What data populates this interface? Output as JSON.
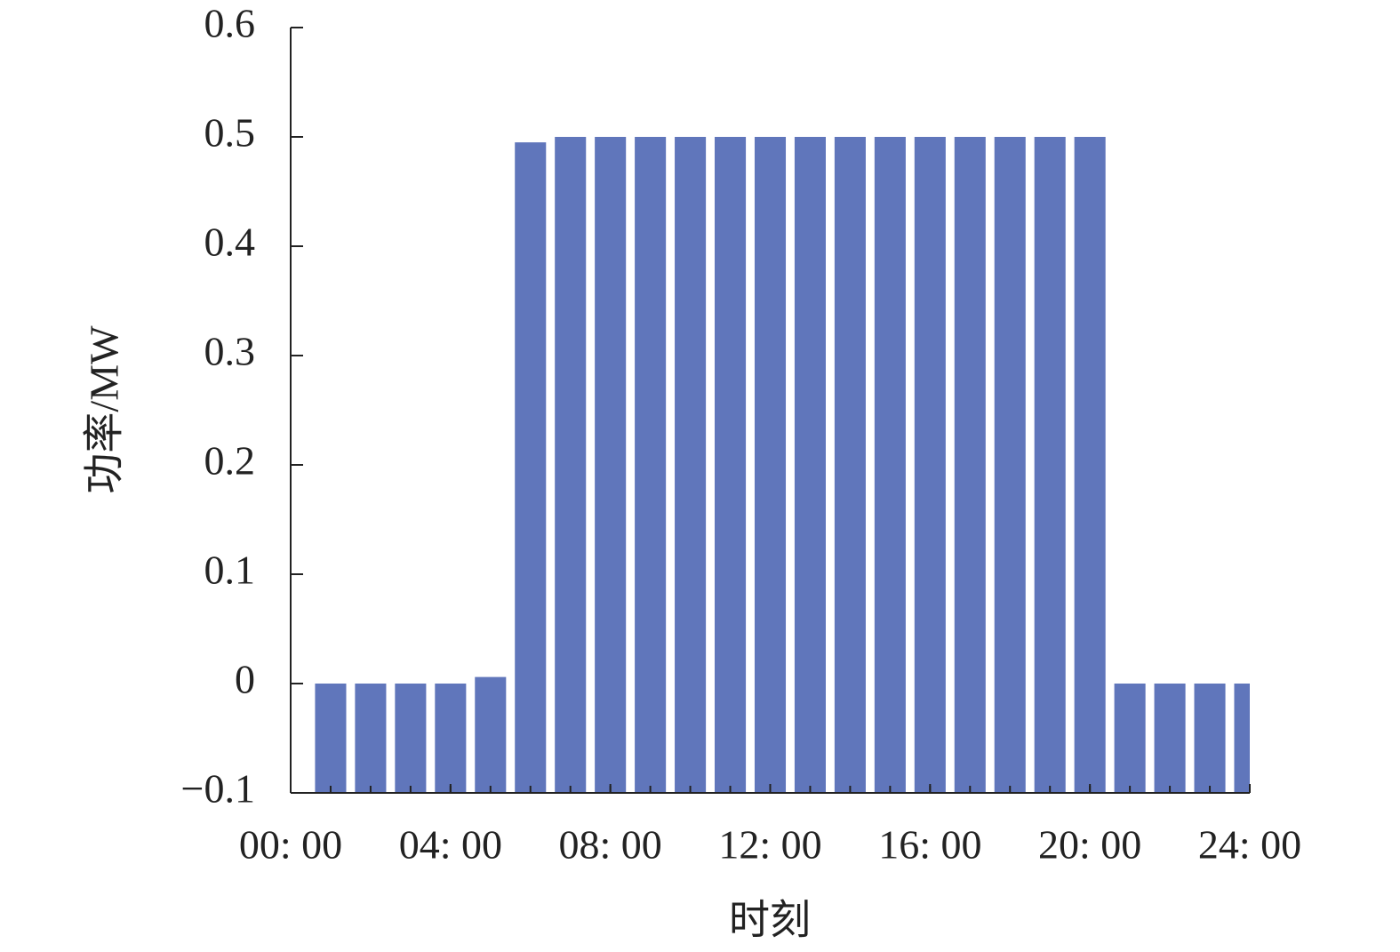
{
  "chart_data": {
    "type": "bar",
    "x": [
      1,
      2,
      3,
      4,
      5,
      6,
      7,
      8,
      9,
      10,
      11,
      12,
      13,
      14,
      15,
      16,
      17,
      18,
      19,
      20,
      21,
      22,
      23,
      24
    ],
    "values": [
      0,
      0,
      0,
      0,
      0.006,
      0.495,
      0.5,
      0.5,
      0.5,
      0.5,
      0.5,
      0.5,
      0.5,
      0.5,
      0.5,
      0.5,
      0.5,
      0.5,
      0.5,
      0.5,
      0,
      0,
      0,
      0
    ],
    "color": "#6076bb",
    "xlim": [
      0,
      24
    ],
    "xticks": [
      {
        "value": 0,
        "label": "00: 00"
      },
      {
        "value": 4,
        "label": "04: 00"
      },
      {
        "value": 8,
        "label": "08: 00"
      },
      {
        "value": 12,
        "label": "12: 00"
      },
      {
        "value": 16,
        "label": "16: 00"
      },
      {
        "value": 20,
        "label": "20: 00"
      },
      {
        "value": 24,
        "label": "24: 00"
      }
    ],
    "ylim": [
      -0.1,
      0.6
    ],
    "yticks": [
      {
        "value": -0.1,
        "label": "−0.1"
      },
      0,
      0.1,
      0.2,
      0.3,
      0.4,
      0.5,
      0.6
    ],
    "x_label": "时刻",
    "y_label": "功率/MW"
  }
}
